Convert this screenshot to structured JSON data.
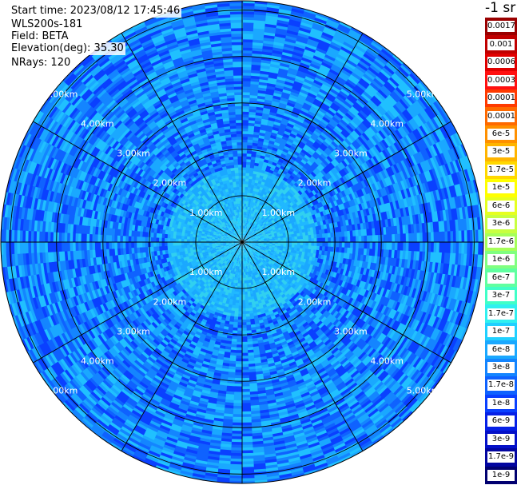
{
  "header": {
    "start_time": "Start time: 2023/08/12 17:45:46",
    "device": "WLS200s-181",
    "field": "Field: BETA",
    "elevation": "Elevation(deg): 35.30",
    "nrays": "NRays: 120"
  },
  "colorbar": {
    "unit": "-1 sr",
    "labels": [
      "0.0017",
      "0.001",
      "0.0006",
      "0.0003",
      "0.00017",
      "0.0001",
      "6e-5",
      "3e-5",
      "1.7e-5",
      "1e-5",
      "6e-6",
      "3e-6",
      "1.7e-6",
      "1e-6",
      "6e-7",
      "3e-7",
      "1.7e-7",
      "1e-7",
      "6e-8",
      "3e-8",
      "1.7e-8",
      "1e-8",
      "6e-9",
      "3e-9",
      "1.7e-9",
      "1e-9"
    ],
    "colors": [
      "#9a0000",
      "#c00000",
      "#e00000",
      "#ff1010",
      "#ff3a00",
      "#ff6a00",
      "#ff9000",
      "#ffb400",
      "#ffd800",
      "#ffff00",
      "#e6ff20",
      "#c8ff40",
      "#a6ff5a",
      "#80ff80",
      "#60ffa0",
      "#40ffc8",
      "#30f0f0",
      "#20d0ff",
      "#1aa8ff",
      "#1485ff",
      "#0f62ff",
      "#0a40ff",
      "#0620e6",
      "#0410c8",
      "#0205a0",
      "#010070"
    ]
  },
  "chart_data": {
    "type": "heatmap",
    "projection": "polar-ppi",
    "range_rings_km": [
      1,
      2,
      3,
      4,
      5
    ],
    "max_range_km": 5.2,
    "azimuth_spokes_deg": [
      0,
      30,
      60,
      90,
      120,
      150,
      180,
      210,
      240,
      270,
      300,
      330
    ],
    "ring_labels": [
      "1.00km",
      "2.00km",
      "3.00km",
      "4.00km",
      "5.00km"
    ],
    "field": "BETA",
    "nrays": 120,
    "dominant_level": "6e-8",
    "value_colors_by_range_km": [
      {
        "range": [
          0,
          0.5
        ],
        "colors": [
          "#1aa8ff",
          "#20d0ff",
          "#30c8f0"
        ]
      },
      {
        "range": [
          0.5,
          1.6
        ],
        "colors": [
          "#20b8ff",
          "#1aa8ff",
          "#30d0f0"
        ]
      },
      {
        "range": [
          1.6,
          5.2
        ],
        "colors": [
          "#1aa8ff",
          "#1485ff",
          "#0f62ff",
          "#20c0ff",
          "#0a40ff"
        ]
      }
    ]
  }
}
